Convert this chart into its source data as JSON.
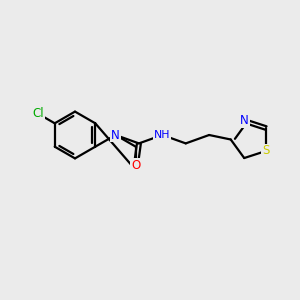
{
  "bg_color": "#ebebeb",
  "bond_color": "#000000",
  "atom_colors": {
    "N": "#0000ff",
    "O": "#ff0000",
    "S": "#cccc00",
    "Cl": "#00aa00",
    "H": "#444444"
  },
  "line_width": 1.6,
  "font_size": 8.5,
  "xlim": [
    0,
    10
  ],
  "ylim": [
    0,
    10
  ]
}
